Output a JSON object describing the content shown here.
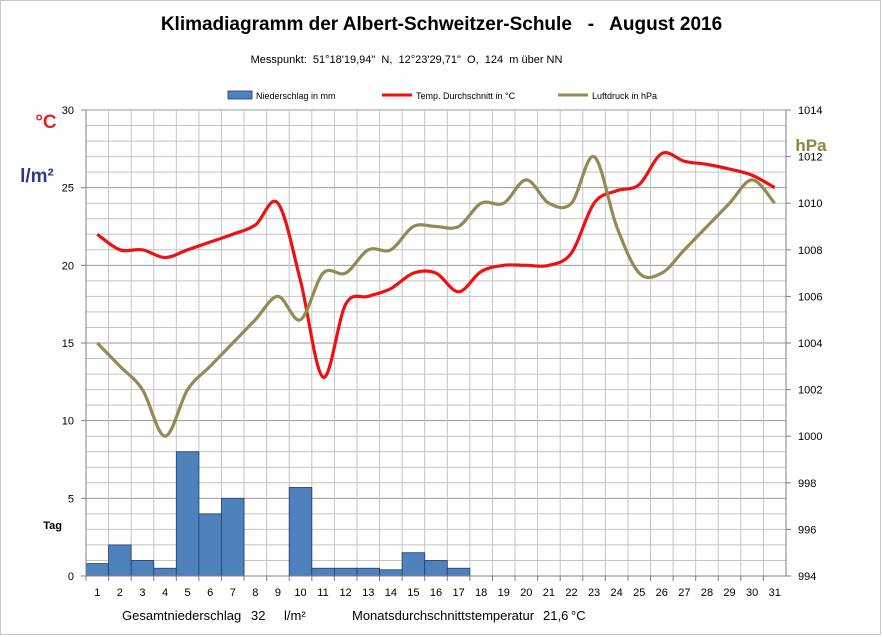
{
  "chart_data": {
    "type": "bar+line",
    "title": "Klimadiagramm der Albert-Schweitzer-Schule   -   August 2016",
    "subtitle": "Messpunkt:  51°18'19,94\"  N,  12°23'29,71\"  O,  124  m über NN",
    "left_axis_labels": {
      "celsius": "°C",
      "precip": "l/m²",
      "tag": "Tag"
    },
    "right_axis_label": "hPa",
    "categories": [
      "1",
      "2",
      "3",
      "4",
      "5",
      "6",
      "7",
      "8",
      "9",
      "10",
      "11",
      "12",
      "13",
      "14",
      "15",
      "16",
      "17",
      "18",
      "19",
      "20",
      "21",
      "22",
      "23",
      "24",
      "25",
      "26",
      "27",
      "28",
      "29",
      "30",
      "31"
    ],
    "y_left": {
      "min": 0,
      "max": 30,
      "ticks": [
        0,
        5,
        10,
        15,
        20,
        25,
        30
      ]
    },
    "y_right": {
      "min": 994,
      "max": 1014,
      "ticks": [
        994,
        996,
        998,
        1000,
        1002,
        1004,
        1006,
        1008,
        1010,
        1012,
        1014
      ]
    },
    "grid": true,
    "legend_position": "top",
    "series": [
      {
        "name": "Niederschlag in mm",
        "kind": "bar",
        "axis": "left",
        "color": "#4f81bd",
        "values": [
          0.8,
          2.0,
          1.0,
          0.5,
          8.0,
          4.0,
          5.0,
          0,
          0,
          5.7,
          0.5,
          0.5,
          0.5,
          0.4,
          1.5,
          1.0,
          0.5,
          0,
          0,
          0,
          0,
          0,
          0,
          0,
          0,
          0,
          0,
          0,
          0,
          0,
          0
        ]
      },
      {
        "name": "Temp. Durchschnitt in °C",
        "kind": "line",
        "axis": "left",
        "color": "#ee1111",
        "values": [
          22.0,
          21.0,
          21.0,
          20.5,
          21.0,
          21.5,
          22.0,
          22.6,
          24.0,
          19.0,
          12.8,
          17.5,
          18.0,
          18.5,
          19.5,
          19.5,
          18.3,
          19.6,
          20.0,
          20.0,
          20.0,
          20.8,
          24.0,
          24.8,
          25.2,
          27.2,
          26.7,
          26.5,
          26.2,
          25.8,
          25.0
        ]
      },
      {
        "name": "Luftdruck in hPa",
        "kind": "line",
        "axis": "right",
        "color": "#948a54",
        "values": [
          1004,
          1003,
          1002,
          1000,
          1002,
          1003,
          1004,
          1005,
          1006,
          1005,
          1007,
          1007,
          1008,
          1008,
          1009,
          1009,
          1009,
          1010,
          1010,
          1011,
          1010,
          1010,
          1012,
          1009,
          1007,
          1007,
          1008,
          1009,
          1010,
          1011,
          1010
        ]
      }
    ],
    "footer": {
      "total_precip_label": "Gesamtniederschlag",
      "total_precip_value": "32",
      "total_precip_unit": "l/m²",
      "avg_temp_label": "Monatsdurchschnittstemperatur",
      "avg_temp_value": "21,6",
      "avg_temp_unit": "°C"
    }
  }
}
